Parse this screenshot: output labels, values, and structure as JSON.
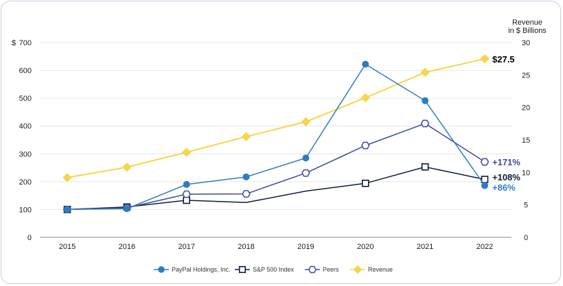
{
  "chart_data": {
    "type": "line",
    "categories": [
      "2015",
      "2016",
      "2017",
      "2018",
      "2019",
      "2020",
      "2021",
      "2022"
    ],
    "y_left": {
      "currency_prefix": "$",
      "ylim": [
        0,
        700
      ],
      "ticks": [
        0,
        100,
        200,
        300,
        400,
        500,
        600,
        700
      ]
    },
    "y_right": {
      "label_line1": "Revenue",
      "label_line2": "in $ Billions",
      "ylim": [
        0,
        30
      ],
      "ticks": [
        0,
        5,
        10,
        15,
        20,
        25,
        30
      ]
    },
    "series": [
      {
        "key": "paypal",
        "name": "PayPal Holdings, Inc.",
        "axis": "left",
        "color": "#2e7cc0",
        "marker": "circle",
        "values": [
          100,
          103,
          190,
          217,
          285,
          622,
          491,
          186
        ],
        "end_label": "+86%"
      },
      {
        "key": "sp500",
        "name": "S&P 500 Index",
        "axis": "left",
        "color": "#0b1c36",
        "marker": "square",
        "values": [
          100,
          109,
          133,
          125,
          166,
          194,
          253,
          208
        ],
        "end_label": "+108%"
      },
      {
        "key": "peers",
        "name": "Peers",
        "axis": "left",
        "color": "#3d4a99",
        "marker": "hexagon",
        "values": [
          100,
          106,
          155,
          156,
          231,
          330,
          409,
          271
        ],
        "end_label": "+171%"
      },
      {
        "key": "revenue",
        "name": "Revenue",
        "axis": "right",
        "color": "#f7d54a",
        "marker": "diamond",
        "values": [
          9.2,
          10.8,
          13.1,
          15.5,
          17.8,
          21.5,
          25.4,
          27.5
        ],
        "end_label": "$27.5"
      }
    ],
    "gridlines": true,
    "legend_position": "bottom-center"
  }
}
